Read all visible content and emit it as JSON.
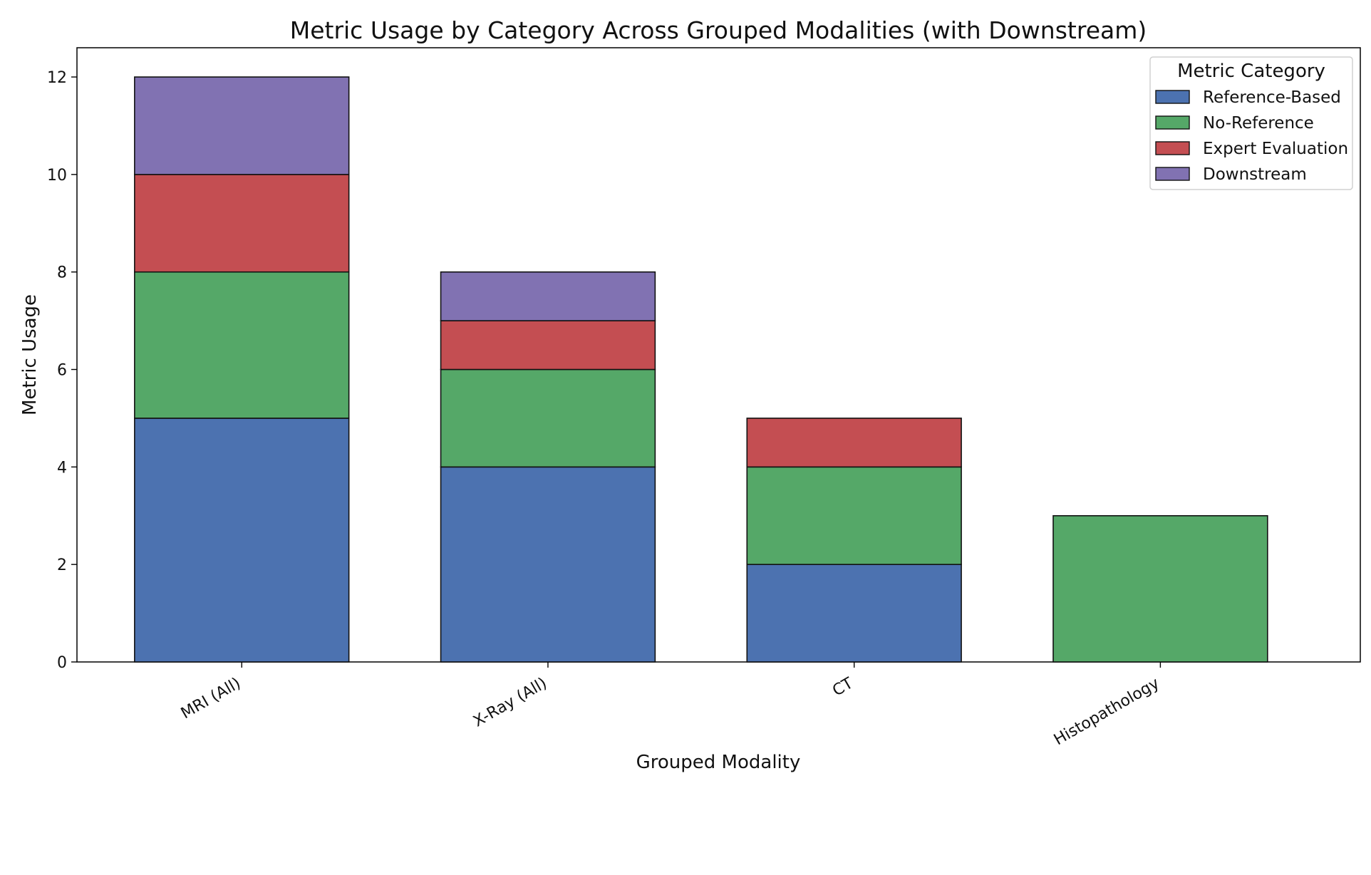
{
  "chart_data": {
    "type": "bar",
    "stacked": true,
    "title": "Metric Usage by Category Across Grouped Modalities (with Downstream)",
    "xlabel": "Grouped Modality",
    "ylabel": "Metric Usage",
    "categories": [
      "MRI (All)",
      "X-Ray (All)",
      "CT",
      "Histopathology"
    ],
    "ylim": [
      0,
      12.6
    ],
    "yticks": [
      0,
      2,
      4,
      6,
      8,
      10,
      12
    ],
    "grid": false,
    "legend": {
      "title": "Metric Category",
      "placement": "top-right"
    },
    "series": [
      {
        "name": "Reference-Based",
        "color": "#4c72b0",
        "values": [
          5,
          4,
          2,
          0
        ]
      },
      {
        "name": "No-Reference",
        "color": "#55a868",
        "values": [
          3,
          2,
          2,
          3
        ]
      },
      {
        "name": "Expert Evaluation",
        "color": "#c44e52",
        "values": [
          2,
          1,
          1,
          0
        ]
      },
      {
        "name": "Downstream",
        "color": "#8172b2",
        "values": [
          2,
          1,
          0,
          0
        ]
      }
    ]
  }
}
